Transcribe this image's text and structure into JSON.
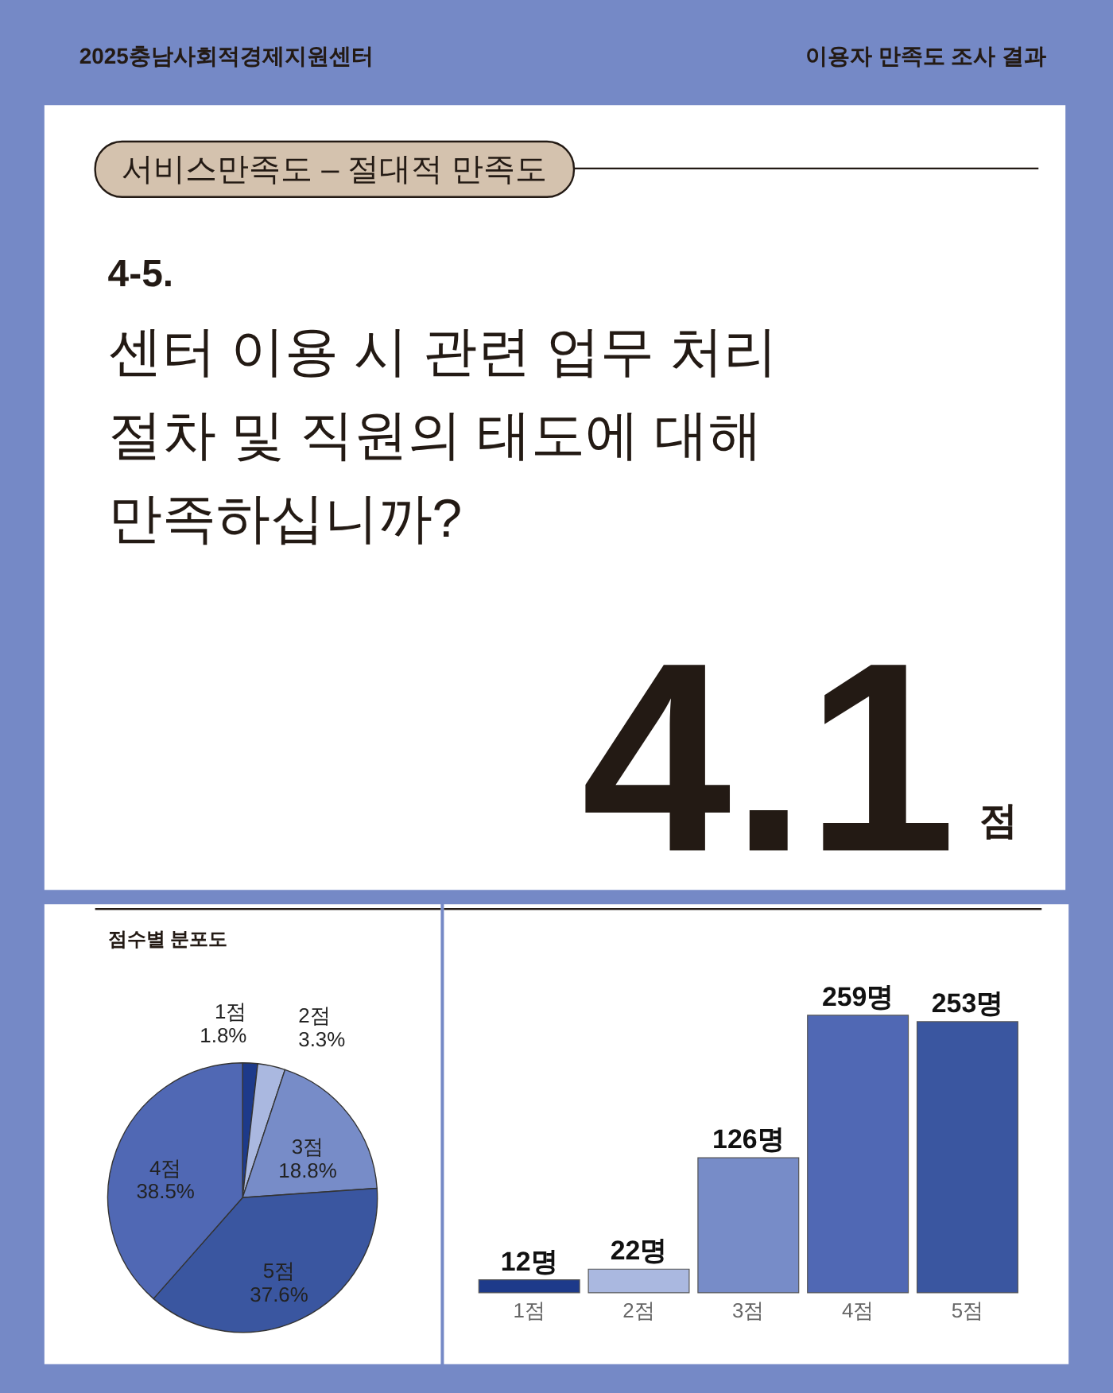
{
  "chart_data": [
    {
      "type": "other",
      "annotations": [
        "2025충남사회적경제지원센터",
        "이용자 만족도 조사 결과",
        "서비스만족도 – 절대적 만족도",
        "4-5.",
        "센터 이용 시 관련 업무 처리\n절차 및 직원의 태도에 대해\n만족하십니까?",
        "4.1",
        "점"
      ]
    },
    {
      "type": "pie",
      "title": "점수별 분포도",
      "categories": [
        "1점",
        "2점",
        "3점",
        "5점",
        "4점"
      ],
      "values": [
        1.8,
        3.3,
        18.8,
        37.6,
        38.5
      ],
      "colors": [
        "#1d3a8a",
        "#aab8e0",
        "#778cc8",
        "#3a56a0",
        "#5068b4"
      ],
      "value_labels": [
        "1.8%",
        "3.3%",
        "18.8%",
        "37.6%",
        "38.5%"
      ]
    },
    {
      "type": "bar",
      "categories": [
        "1점",
        "2점",
        "3점",
        "4점",
        "5점"
      ],
      "values": [
        12,
        22,
        126,
        259,
        253
      ],
      "colors": [
        "#1d3a8a",
        "#aab8e0",
        "#778cc8",
        "#5068b4",
        "#3a56a0"
      ],
      "value_labels": [
        "12명",
        "22명",
        "126명",
        "259명",
        "253명"
      ],
      "tick_labels": "x"
    }
  ]
}
